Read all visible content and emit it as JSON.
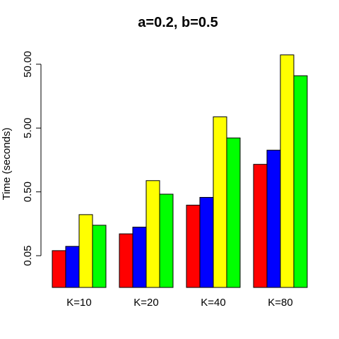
{
  "chart_data": {
    "type": "bar",
    "title": "a=0.2, b=0.5",
    "xlabel": "",
    "ylabel": "Time (seconds)",
    "y_scale": "log",
    "ylim": [
      0.0159,
      110
    ],
    "yticks": [
      0.05,
      0.5,
      5,
      50
    ],
    "ytick_labels": [
      "0.05",
      "0.50",
      "5.00",
      "50.00"
    ],
    "categories": [
      "K=10",
      "K=20",
      "K=40",
      "K=80"
    ],
    "legend": "none",
    "grid": false,
    "series": [
      {
        "color": "#ff0000",
        "values": [
          0.06,
          0.11,
          0.31,
          1.35
        ]
      },
      {
        "color": "#0000ff",
        "values": [
          0.07,
          0.14,
          0.41,
          2.25
        ]
      },
      {
        "color": "#ffff00",
        "values": [
          0.22,
          0.75,
          7.5,
          70
        ]
      },
      {
        "color": "#00ff00",
        "values": [
          0.15,
          0.46,
          3.5,
          33
        ]
      }
    ]
  }
}
